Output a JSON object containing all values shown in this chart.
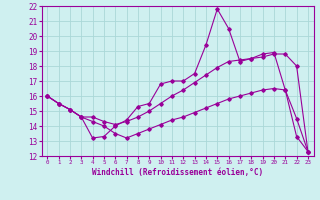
{
  "xlabel": "Windchill (Refroidissement éolien,°C)",
  "ylabel": "",
  "background_color": "#cff0f0",
  "grid_color": "#aad8d8",
  "line_color": "#990099",
  "xlim": [
    -0.5,
    23.5
  ],
  "ylim": [
    12,
    22
  ],
  "xticks": [
    0,
    1,
    2,
    3,
    4,
    5,
    6,
    7,
    8,
    9,
    10,
    11,
    12,
    13,
    14,
    15,
    16,
    17,
    18,
    19,
    20,
    21,
    22,
    23
  ],
  "yticks": [
    12,
    13,
    14,
    15,
    16,
    17,
    18,
    19,
    20,
    21,
    22
  ],
  "line1_x": [
    0,
    1,
    2,
    3,
    4,
    5,
    6,
    7,
    8,
    9,
    10,
    11,
    12,
    13,
    14,
    15,
    16,
    17,
    18,
    19,
    20,
    21,
    22,
    23
  ],
  "line1_y": [
    16.0,
    15.5,
    15.1,
    14.6,
    13.2,
    13.3,
    14.0,
    14.4,
    15.3,
    15.5,
    16.8,
    17.0,
    17.0,
    17.5,
    19.4,
    21.8,
    20.5,
    18.3,
    18.5,
    18.8,
    18.9,
    16.4,
    13.3,
    12.3
  ],
  "line2_x": [
    0,
    1,
    2,
    3,
    4,
    5,
    6,
    7,
    8,
    9,
    10,
    11,
    12,
    13,
    14,
    15,
    16,
    17,
    18,
    19,
    20,
    21,
    22,
    23
  ],
  "line2_y": [
    16.0,
    15.5,
    15.1,
    14.6,
    14.6,
    14.3,
    14.1,
    14.3,
    14.6,
    15.0,
    15.5,
    16.0,
    16.4,
    16.9,
    17.4,
    17.9,
    18.3,
    18.4,
    18.5,
    18.6,
    18.8,
    18.8,
    18.0,
    12.3
  ],
  "line3_x": [
    0,
    1,
    2,
    3,
    4,
    5,
    6,
    7,
    8,
    9,
    10,
    11,
    12,
    13,
    14,
    15,
    16,
    17,
    18,
    19,
    20,
    21,
    22,
    23
  ],
  "line3_y": [
    16.0,
    15.5,
    15.1,
    14.6,
    14.3,
    14.0,
    13.5,
    13.2,
    13.5,
    13.8,
    14.1,
    14.4,
    14.6,
    14.9,
    15.2,
    15.5,
    15.8,
    16.0,
    16.2,
    16.4,
    16.5,
    16.4,
    14.5,
    12.3
  ]
}
